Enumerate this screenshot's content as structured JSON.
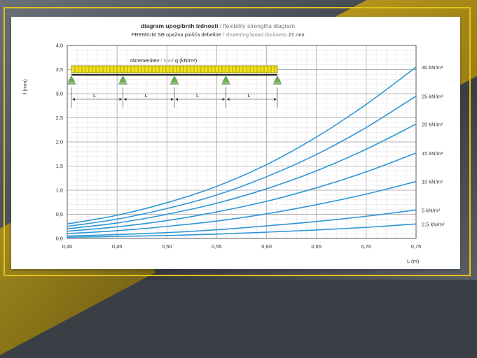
{
  "chart_data": {
    "type": "line",
    "title_bold": "diagram upogibnih trdnosti",
    "title_sep": " / ",
    "title_en": "flexibility strengths diagram",
    "subtitle_a": "PREMIUM SB opažna plošča debeline",
    "subtitle_sep": " / ",
    "subtitle_en": "shuttering board thickness",
    "subtitle_b": " 21 mm",
    "xlabel": "L (m)",
    "ylabel": "f (mm)",
    "xlim": [
      0.4,
      0.75
    ],
    "ylim": [
      0.0,
      4.0
    ],
    "x_ticks": [
      "0,40",
      "0,45",
      "0,50",
      "0,55",
      "0,60",
      "0,65",
      "0,70",
      "0,75"
    ],
    "y_ticks": [
      "0,0",
      "0,5",
      "1,0",
      "1,5",
      "2,0",
      "2,5",
      "3,0",
      "3,5",
      "4,0"
    ],
    "grid": true,
    "x": [
      0.4,
      0.45,
      0.5,
      0.55,
      0.6,
      0.65,
      0.7,
      0.75
    ],
    "series": [
      {
        "name": "30 kN/m²",
        "values": [
          0.3,
          0.48,
          0.74,
          1.08,
          1.53,
          2.1,
          2.78,
          3.55
        ]
      },
      {
        "name": "25 kN/m²",
        "values": [
          0.25,
          0.4,
          0.62,
          0.9,
          1.28,
          1.74,
          2.3,
          2.95
        ]
      },
      {
        "name": "20 kN/m²",
        "values": [
          0.2,
          0.32,
          0.5,
          0.73,
          1.03,
          1.4,
          1.85,
          2.37
        ]
      },
      {
        "name": "15 kN/m²",
        "values": [
          0.15,
          0.24,
          0.37,
          0.55,
          0.77,
          1.05,
          1.38,
          1.77
        ]
      },
      {
        "name": "10 kN/m²",
        "values": [
          0.1,
          0.16,
          0.25,
          0.36,
          0.51,
          0.7,
          0.92,
          1.18
        ]
      },
      {
        "name": "5 kN/m²",
        "values": [
          0.05,
          0.08,
          0.12,
          0.18,
          0.26,
          0.35,
          0.46,
          0.59
        ]
      },
      {
        "name": "2,5 kN/m²",
        "values": [
          0.025,
          0.04,
          0.06,
          0.09,
          0.13,
          0.175,
          0.23,
          0.3
        ]
      }
    ],
    "legend_placement": "right, at line ends",
    "line_color": "#2f97d8",
    "schematic": {
      "load_label_a": "obremenitev",
      "load_label_sep": " / ",
      "load_label_b": "load",
      "load_label_c": " q (kN/m²)",
      "span_label": "L",
      "span_count": 4,
      "load_color": "#f2e31a",
      "support_color": "#6ab04c"
    }
  }
}
